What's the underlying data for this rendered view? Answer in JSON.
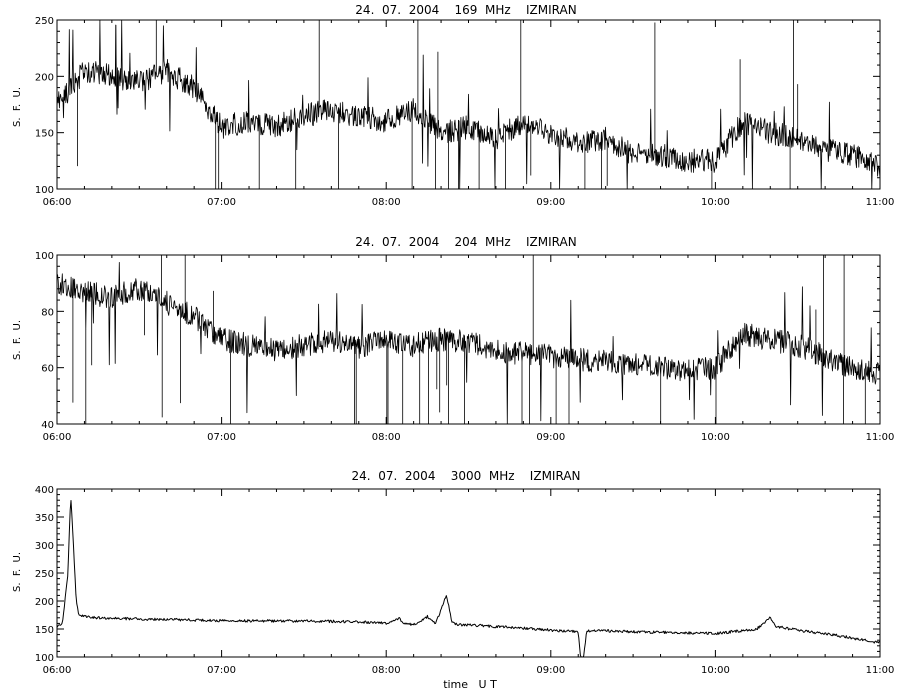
{
  "chart_data": [
    {
      "type": "line",
      "title": "24.  07.  2004    169  MHz    IZMIRAN",
      "ylabel": "S.  F.  U.",
      "xlabel": "",
      "xlim": [
        "06:00",
        "11:00"
      ],
      "ylim": [
        100,
        250
      ],
      "x_ticks": [
        "06:00",
        "07:00",
        "08:00",
        "09:00",
        "10:00",
        "11:00"
      ],
      "y_ticks": [
        100,
        150,
        200,
        250
      ],
      "grid": false,
      "series": [
        {
          "name": "",
          "x": [
            "06:00",
            "06:10",
            "06:20",
            "06:30",
            "06:40",
            "06:50",
            "07:00",
            "07:10",
            "07:20",
            "07:30",
            "07:40",
            "07:50",
            "08:00",
            "08:10",
            "08:20",
            "08:30",
            "08:40",
            "08:50",
            "09:00",
            "09:10",
            "09:20",
            "09:30",
            "09:40",
            "09:50",
            "10:00",
            "10:10",
            "10:20",
            "10:30",
            "10:40",
            "10:50",
            "11:00"
          ],
          "values": [
            175,
            205,
            200,
            195,
            205,
            190,
            155,
            160,
            155,
            165,
            170,
            165,
            160,
            170,
            150,
            155,
            145,
            160,
            150,
            140,
            145,
            130,
            130,
            125,
            125,
            160,
            150,
            145,
            135,
            130,
            120
          ]
        }
      ]
    },
    {
      "type": "line",
      "title": "24.  07.  2004    204  MHz    IZMIRAN",
      "ylabel": "S.  F.  U.",
      "xlabel": "",
      "xlim": [
        "06:00",
        "11:00"
      ],
      "ylim": [
        40,
        100
      ],
      "x_ticks": [
        "06:00",
        "07:00",
        "08:00",
        "09:00",
        "10:00",
        "11:00"
      ],
      "y_ticks": [
        40,
        60,
        80,
        100
      ],
      "grid": false,
      "series": [
        {
          "name": "",
          "x": [
            "06:00",
            "06:10",
            "06:20",
            "06:30",
            "06:40",
            "06:50",
            "07:00",
            "07:10",
            "07:20",
            "07:30",
            "07:40",
            "07:50",
            "08:00",
            "08:10",
            "08:20",
            "08:30",
            "08:40",
            "08:50",
            "09:00",
            "09:10",
            "09:20",
            "09:30",
            "09:40",
            "09:50",
            "10:00",
            "10:10",
            "10:20",
            "10:30",
            "10:40",
            "10:50",
            "11:00"
          ],
          "values": [
            90,
            87,
            85,
            88,
            83,
            78,
            70,
            68,
            66,
            68,
            70,
            67,
            70,
            68,
            70,
            69,
            66,
            65,
            64,
            63,
            62,
            61,
            60,
            59,
            60,
            72,
            70,
            68,
            64,
            60,
            58
          ]
        }
      ]
    },
    {
      "type": "line",
      "title": "24.  07.  2004    3000  MHz    IZMIRAN",
      "ylabel": "S.  F.  U.",
      "xlabel": "time   U T",
      "xlim": [
        "06:00",
        "11:00"
      ],
      "ylim": [
        100,
        400
      ],
      "x_ticks": [
        "06:00",
        "07:00",
        "08:00",
        "09:00",
        "10:00",
        "11:00"
      ],
      "y_ticks": [
        100,
        150,
        200,
        250,
        300,
        350,
        400
      ],
      "grid": false,
      "series": [
        {
          "name": "",
          "x": [
            "06:00",
            "06:02",
            "06:04",
            "06:05",
            "06:06",
            "06:07",
            "06:08",
            "06:10",
            "06:15",
            "06:30",
            "07:00",
            "07:30",
            "07:50",
            "08:00",
            "08:05",
            "08:06",
            "08:10",
            "08:15",
            "08:18",
            "08:22",
            "08:24",
            "08:26",
            "08:30",
            "08:45",
            "09:00",
            "09:10",
            "09:11",
            "09:12",
            "09:13",
            "09:15",
            "09:30",
            "10:00",
            "10:15",
            "10:20",
            "10:22",
            "10:25",
            "10:30",
            "10:45",
            "11:00"
          ],
          "values": [
            155,
            160,
            250,
            390,
            300,
            200,
            175,
            172,
            170,
            168,
            165,
            164,
            163,
            160,
            170,
            160,
            158,
            172,
            160,
            210,
            162,
            158,
            157,
            153,
            148,
            145,
            95,
            100,
            145,
            148,
            145,
            142,
            150,
            170,
            155,
            152,
            148,
            138,
            125
          ]
        }
      ]
    }
  ]
}
